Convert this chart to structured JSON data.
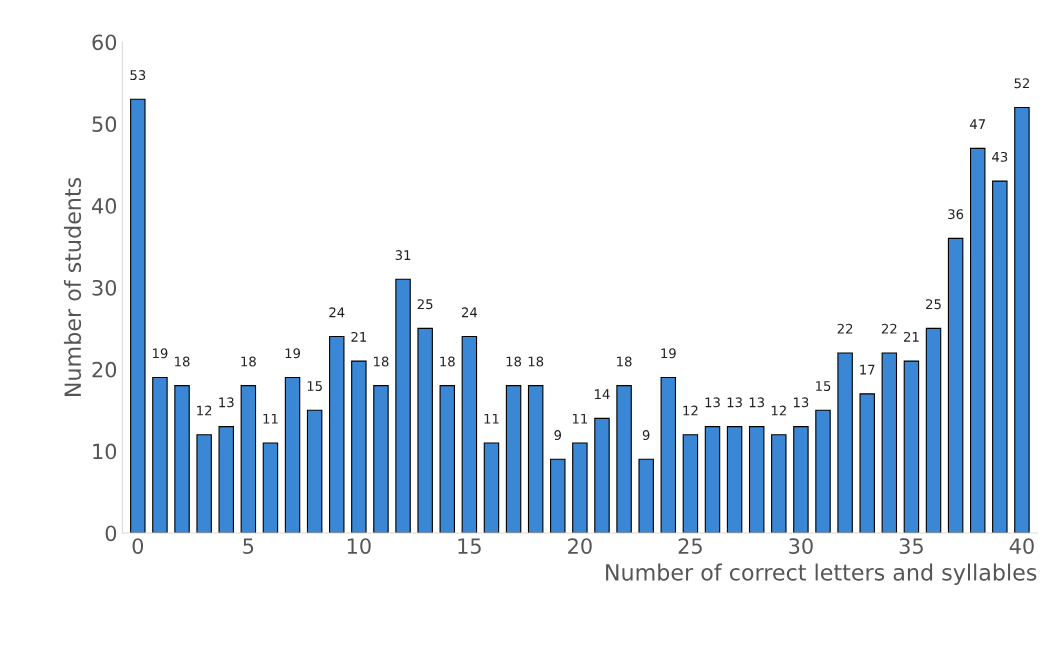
{
  "chart_data": {
    "type": "bar",
    "xlabel": "Number of correct letters and syllables",
    "ylabel": "Number of students",
    "x": [
      0,
      1,
      2,
      3,
      4,
      5,
      6,
      7,
      8,
      9,
      10,
      11,
      12,
      13,
      14,
      15,
      16,
      17,
      18,
      19,
      20,
      21,
      22,
      23,
      24,
      25,
      26,
      27,
      28,
      29,
      30,
      31,
      32,
      33,
      34,
      35,
      36,
      37,
      38,
      39,
      40
    ],
    "values": [
      53,
      19,
      18,
      12,
      13,
      18,
      11,
      19,
      15,
      24,
      21,
      18,
      31,
      25,
      18,
      24,
      11,
      18,
      18,
      9,
      11,
      14,
      18,
      9,
      19,
      12,
      13,
      13,
      13,
      12,
      13,
      15,
      22,
      17,
      22,
      21,
      25,
      36,
      47,
      43,
      52
    ],
    "color": "#3a87d6",
    "xlim": [
      -0.7,
      40.7
    ],
    "xticks": [
      0,
      5,
      10,
      15,
      20,
      25,
      30,
      35,
      40
    ],
    "ylim": [
      0,
      60
    ],
    "yticks": [
      0,
      10,
      20,
      30,
      40,
      50,
      60
    ],
    "data_labels": true,
    "grid": false,
    "legend": false
  }
}
